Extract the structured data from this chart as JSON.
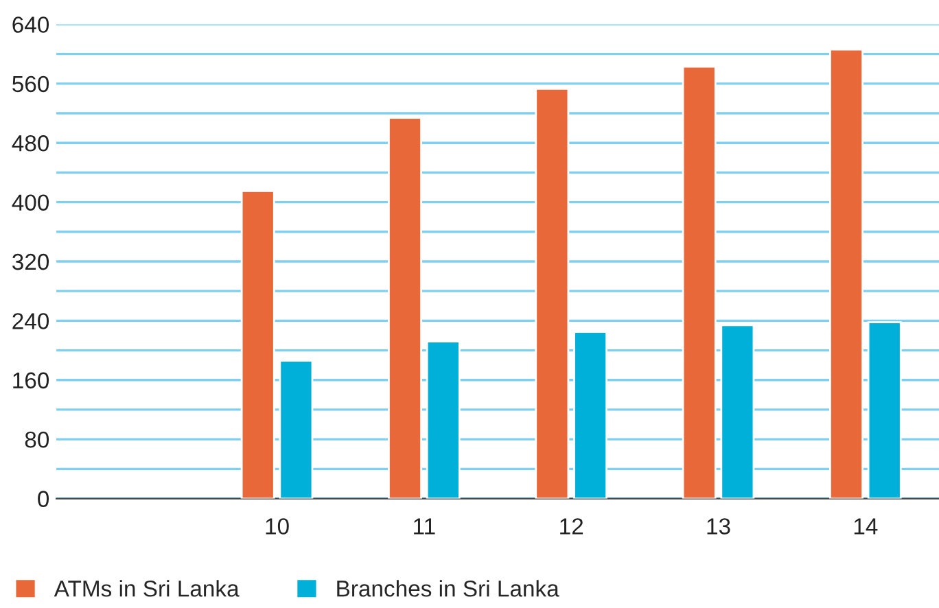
{
  "chart_data": {
    "type": "bar",
    "categories": [
      "10",
      "11",
      "12",
      "13",
      "14"
    ],
    "series": [
      {
        "name": "ATMs in Sri Lanka",
        "color": "#e8683a",
        "values": [
          415,
          514,
          553,
          583,
          606
        ]
      },
      {
        "name": "Branches in Sri Lanka",
        "color": "#00b0d8",
        "values": [
          186,
          212,
          225,
          234,
          238
        ]
      }
    ],
    "ylim": [
      0,
      640
    ],
    "yticks": [
      0,
      {
        "value": 40,
        "label": null
      },
      80,
      {
        "value": 120,
        "label": null
      },
      160,
      {
        "value": 200,
        "label": null
      },
      240,
      {
        "value": 280,
        "label": null
      },
      320,
      {
        "value": 360,
        "label": null
      },
      400,
      {
        "value": 440,
        "label": null
      },
      480,
      {
        "value": 520,
        "label": null
      },
      560,
      {
        "value": 600,
        "label": null
      },
      640
    ],
    "grid": "y",
    "legend": "bottom left"
  }
}
